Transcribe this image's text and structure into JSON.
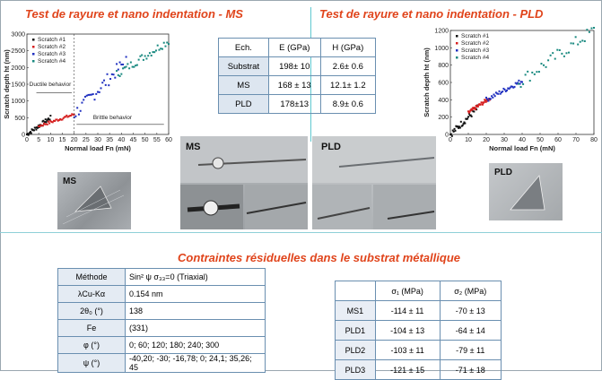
{
  "titles": {
    "left": "Test de rayure et nano indentation - MS",
    "right": "Test de rayure et nano indentation - PLD",
    "middle": "Contraintes résiduelles dans le substrat métallique"
  },
  "moduli_table": {
    "headers": [
      "Ech.",
      "E (GPa)",
      "H (GPa)"
    ],
    "rows": [
      [
        "Substrat",
        "198± 10",
        "2.6± 0.6"
      ],
      [
        "MS",
        "168 ± 13",
        "12.1± 1.2"
      ],
      [
        "PLD",
        "178±13",
        "8.9± 0.6"
      ]
    ]
  },
  "method_table": {
    "rows": [
      [
        "Méthode",
        "Sin² ψ σ₃₃=0 (Triaxial)"
      ],
      [
        "λCu-Kα",
        "0.154 nm"
      ],
      [
        "2θ₀ (°)",
        "138"
      ],
      [
        "Fe",
        "(331)"
      ],
      [
        "φ (°)",
        "0; 60; 120; 180; 240; 300"
      ],
      [
        "ψ (°)",
        "-40,20; -30; -16,78; 0; 24,1; 35,26; 45"
      ]
    ]
  },
  "stress_table": {
    "headers": [
      "",
      "σ₁ (MPa)",
      "σ₂ (MPa)"
    ],
    "rows": [
      [
        "MS1",
        "-114 ± 11",
        "-70 ± 13"
      ],
      [
        "PLD1",
        "-104 ± 13",
        "-64 ± 14"
      ],
      [
        "PLD2",
        "-103 ± 11",
        "-79 ± 11"
      ],
      [
        "PLD3",
        "-121 ± 15",
        "-71 ± 18"
      ]
    ]
  },
  "photo_labels": {
    "ms_indent": "MS",
    "ms_scratch": "MS",
    "pld_scratch": "PLD",
    "pld_indent": "PLD"
  },
  "colors": {
    "title": "#e0441b",
    "scratch1": "#111111",
    "scratch2": "#d62020",
    "scratch3": "#2030c0",
    "scratch4": "#1a8a80"
  },
  "chart_data": [
    {
      "type": "scatter",
      "xlabel": "Normal load Fn (mN)",
      "ylabel": "Scratch depth ht (nm)",
      "xlim": [
        0,
        60
      ],
      "ylim": [
        0,
        3000
      ],
      "xticks": [
        0,
        5,
        10,
        15,
        20,
        25,
        30,
        35,
        40,
        45,
        50,
        55,
        60
      ],
      "yticks": [
        0,
        500,
        1000,
        1500,
        2000,
        2500,
        3000
      ],
      "legend": [
        "Scratch #1",
        "Scratch #2",
        "Scratch #3",
        "Scratch #4"
      ],
      "legend_position": "top-left",
      "annotations": [
        "Ductile behavior",
        "Brittle behavior"
      ],
      "series": [
        {
          "name": "Scratch #1",
          "range_x": [
            0,
            10
          ],
          "range_y": [
            0,
            500
          ]
        },
        {
          "name": "Scratch #2",
          "range_x": [
            5,
            20
          ],
          "range_y": [
            250,
            600
          ]
        },
        {
          "name": "Scratch #3",
          "range_x": [
            20,
            42
          ],
          "range_y": [
            600,
            2200
          ]
        },
        {
          "name": "Scratch #4",
          "range_x": [
            38,
            60
          ],
          "range_y": [
            1800,
            2800
          ]
        }
      ]
    },
    {
      "type": "scatter",
      "xlabel": "Normal load Fn (mN)",
      "ylabel": "Scratch depth ht (nm)",
      "xlim": [
        0,
        80
      ],
      "ylim": [
        0,
        1200
      ],
      "xticks": [
        0,
        10,
        20,
        30,
        40,
        50,
        60,
        70,
        80
      ],
      "yticks": [
        0,
        200,
        400,
        600,
        800,
        1000,
        1200
      ],
      "legend": [
        "Scratch #1",
        "Scratch #2",
        "Scratch #3",
        "Scratch #4"
      ],
      "legend_position": "top-left",
      "series": [
        {
          "name": "Scratch #1",
          "range_x": [
            0,
            15
          ],
          "range_y": [
            0,
            300
          ]
        },
        {
          "name": "Scratch #2",
          "range_x": [
            10,
            22
          ],
          "range_y": [
            250,
            420
          ]
        },
        {
          "name": "Scratch #3",
          "range_x": [
            20,
            40
          ],
          "range_y": [
            400,
            620
          ]
        },
        {
          "name": "Scratch #4",
          "range_x": [
            38,
            80
          ],
          "range_y": [
            600,
            1200
          ]
        }
      ]
    }
  ]
}
